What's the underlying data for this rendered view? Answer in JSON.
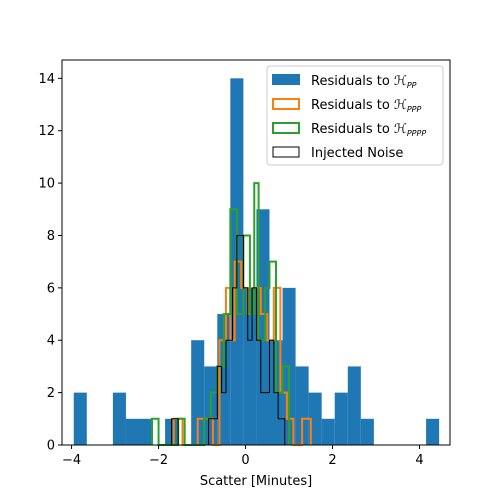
{
  "chart_data": {
    "type": "histogram",
    "xlabel": "Scatter [Minutes]",
    "ylabel": "",
    "title": "",
    "xlim": [
      -4.22,
      4.7
    ],
    "ylim": [
      0,
      14.7
    ],
    "xticks": [
      -4,
      -2,
      0,
      2,
      4
    ],
    "yticks": [
      0,
      2,
      4,
      6,
      8,
      10,
      12,
      14
    ],
    "legend_position": "top-right",
    "series": [
      {
        "name": "Residuals to ",
        "name_math": "ℋ",
        "name_sub": "PP",
        "style": "filled",
        "color": "#1f77b4",
        "bins": [
          {
            "x0": -3.95,
            "x1": -3.65,
            "count": 2
          },
          {
            "x0": -3.05,
            "x1": -2.75,
            "count": 2
          },
          {
            "x0": -2.75,
            "x1": -2.15,
            "count": 1
          },
          {
            "x0": -1.85,
            "x1": -1.55,
            "count": 1
          },
          {
            "x0": -1.25,
            "x1": -0.95,
            "count": 4
          },
          {
            "x0": -0.95,
            "x1": -0.65,
            "count": 3
          },
          {
            "x0": -0.65,
            "x1": -0.35,
            "count": 5
          },
          {
            "x0": -0.35,
            "x1": -0.05,
            "count": 14
          },
          {
            "x0": -0.05,
            "x1": 0.25,
            "count": 6
          },
          {
            "x0": 0.25,
            "x1": 0.55,
            "count": 9
          },
          {
            "x0": 0.55,
            "x1": 0.85,
            "count": 4
          },
          {
            "x0": 0.85,
            "x1": 1.15,
            "count": 6
          },
          {
            "x0": 1.15,
            "x1": 1.45,
            "count": 3
          },
          {
            "x0": 1.45,
            "x1": 1.75,
            "count": 2
          },
          {
            "x0": 1.75,
            "x1": 2.05,
            "count": 1
          },
          {
            "x0": 2.05,
            "x1": 2.35,
            "count": 2
          },
          {
            "x0": 2.35,
            "x1": 2.65,
            "count": 3
          },
          {
            "x0": 2.65,
            "x1": 2.95,
            "count": 1
          },
          {
            "x0": 4.15,
            "x1": 4.45,
            "count": 1
          }
        ]
      },
      {
        "name": "Residuals to ",
        "name_math": "ℋ",
        "name_sub": "PPP",
        "style": "step",
        "color": "#ff7f0e",
        "steps": [
          {
            "x": -1.8,
            "y": 0
          },
          {
            "x": -1.65,
            "y": 1
          },
          {
            "x": -1.45,
            "y": 0
          },
          {
            "x": -1.1,
            "y": 1
          },
          {
            "x": -0.75,
            "y": 0
          },
          {
            "x": -0.6,
            "y": 4
          },
          {
            "x": -0.45,
            "y": 6
          },
          {
            "x": -0.35,
            "y": 4
          },
          {
            "x": -0.25,
            "y": 7
          },
          {
            "x": -0.1,
            "y": 6
          },
          {
            "x": 0.05,
            "y": 5
          },
          {
            "x": 0.2,
            "y": 6
          },
          {
            "x": 0.35,
            "y": 5
          },
          {
            "x": 0.5,
            "y": 4
          },
          {
            "x": 0.65,
            "y": 6
          },
          {
            "x": 0.8,
            "y": 2
          },
          {
            "x": 0.95,
            "y": 1
          },
          {
            "x": 1.1,
            "y": 0
          },
          {
            "x": 1.3,
            "y": 1
          },
          {
            "x": 1.5,
            "y": 0
          }
        ]
      },
      {
        "name": "Residuals to ",
        "name_math": "ℋ",
        "name_sub": "PPPP",
        "style": "step",
        "color": "#2ca02c",
        "steps": [
          {
            "x": -2.15,
            "y": 1
          },
          {
            "x": -2.0,
            "y": 0
          },
          {
            "x": -1.7,
            "y": 0
          },
          {
            "x": -1.55,
            "y": 1
          },
          {
            "x": -1.4,
            "y": 0
          },
          {
            "x": -0.95,
            "y": 1
          },
          {
            "x": -0.8,
            "y": 2
          },
          {
            "x": -0.65,
            "y": 3
          },
          {
            "x": -0.5,
            "y": 5
          },
          {
            "x": -0.35,
            "y": 9
          },
          {
            "x": -0.2,
            "y": 5
          },
          {
            "x": -0.05,
            "y": 8
          },
          {
            "x": 0.1,
            "y": 5
          },
          {
            "x": 0.2,
            "y": 10
          },
          {
            "x": 0.3,
            "y": 4
          },
          {
            "x": 0.45,
            "y": 6
          },
          {
            "x": 0.55,
            "y": 7
          },
          {
            "x": 0.7,
            "y": 2
          },
          {
            "x": 0.85,
            "y": 3
          },
          {
            "x": 1.0,
            "y": 0
          }
        ]
      },
      {
        "name": "Injected Noise",
        "name_math": "",
        "name_sub": "",
        "style": "step",
        "color": "#000000",
        "steps": [
          {
            "x": -1.85,
            "y": 0
          },
          {
            "x": -1.7,
            "y": 1
          },
          {
            "x": -1.55,
            "y": 0
          },
          {
            "x": -0.95,
            "y": 0
          },
          {
            "x": -0.85,
            "y": 1
          },
          {
            "x": -0.65,
            "y": 3
          },
          {
            "x": -0.55,
            "y": 2
          },
          {
            "x": -0.45,
            "y": 4
          },
          {
            "x": -0.3,
            "y": 6
          },
          {
            "x": -0.2,
            "y": 8
          },
          {
            "x": -0.05,
            "y": 6
          },
          {
            "x": 0.05,
            "y": 4
          },
          {
            "x": 0.15,
            "y": 6
          },
          {
            "x": 0.25,
            "y": 4
          },
          {
            "x": 0.35,
            "y": 2
          },
          {
            "x": 0.55,
            "y": 4
          },
          {
            "x": 0.65,
            "y": 2
          },
          {
            "x": 0.75,
            "y": 1
          },
          {
            "x": 0.9,
            "y": 0
          }
        ]
      }
    ]
  }
}
